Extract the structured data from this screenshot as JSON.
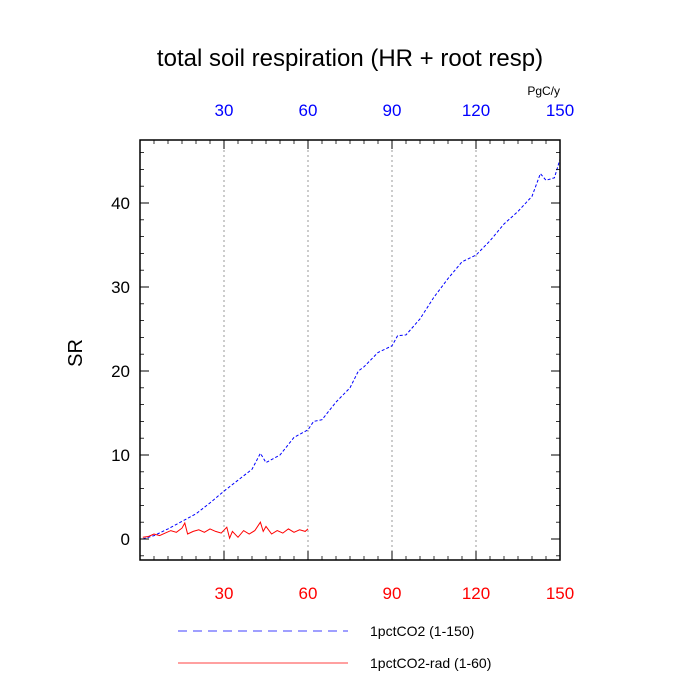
{
  "chart_data": {
    "type": "line",
    "title": "total soil respiration (HR + root resp)",
    "ylabel": "SR",
    "units_label": "PgC/y",
    "xlim": [
      0,
      150
    ],
    "ylim": [
      -2.5,
      47.5
    ],
    "x_ticks": [
      30,
      60,
      90,
      120,
      150
    ],
    "y_ticks": [
      0,
      10,
      20,
      30,
      40
    ],
    "grid": "vertical dotted at x ticks",
    "colors": {
      "top_axis": "#0000ff",
      "bottom_axis": "#ff0000"
    },
    "legend_position": "bottom",
    "series": [
      {
        "name": "1pctCO2 (1-150)",
        "color": "#0000ff",
        "dash": "dashed",
        "x": [
          1,
          5,
          10,
          15,
          20,
          25,
          30,
          35,
          40,
          43,
          45,
          50,
          55,
          60,
          62,
          65,
          70,
          75,
          78,
          80,
          85,
          90,
          92,
          95,
          100,
          105,
          110,
          115,
          120,
          125,
          130,
          135,
          140,
          143,
          145,
          148,
          150
        ],
        "y": [
          0.0,
          0.4,
          1.2,
          2.1,
          3.0,
          4.3,
          5.7,
          7.0,
          8.3,
          10.2,
          9.1,
          10.0,
          12.1,
          13.0,
          14.0,
          14.2,
          16.3,
          18.0,
          20.0,
          20.5,
          22.2,
          23.0,
          24.2,
          24.3,
          26.2,
          28.8,
          31.0,
          33.0,
          33.8,
          35.5,
          37.5,
          39.0,
          40.8,
          43.5,
          42.7,
          43.0,
          45.2
        ]
      },
      {
        "name": "1pctCO2-rad (1-60)",
        "color": "#ff0000",
        "dash": "solid",
        "x": [
          1,
          3,
          5,
          7,
          9,
          11,
          13,
          15,
          16,
          17,
          19,
          21,
          23,
          25,
          27,
          29,
          31,
          32,
          33,
          35,
          37,
          39,
          41,
          43,
          44,
          45,
          47,
          49,
          51,
          53,
          55,
          57,
          59,
          60
        ],
        "y": [
          0.2,
          0.3,
          0.6,
          0.4,
          0.7,
          1.0,
          0.8,
          1.3,
          1.9,
          0.6,
          0.9,
          1.1,
          0.8,
          1.2,
          0.9,
          0.7,
          1.4,
          0.1,
          0.9,
          0.2,
          1.0,
          0.6,
          1.0,
          2.0,
          0.9,
          1.5,
          0.6,
          1.0,
          0.7,
          1.2,
          0.8,
          1.1,
          0.9,
          1.2
        ]
      }
    ]
  }
}
